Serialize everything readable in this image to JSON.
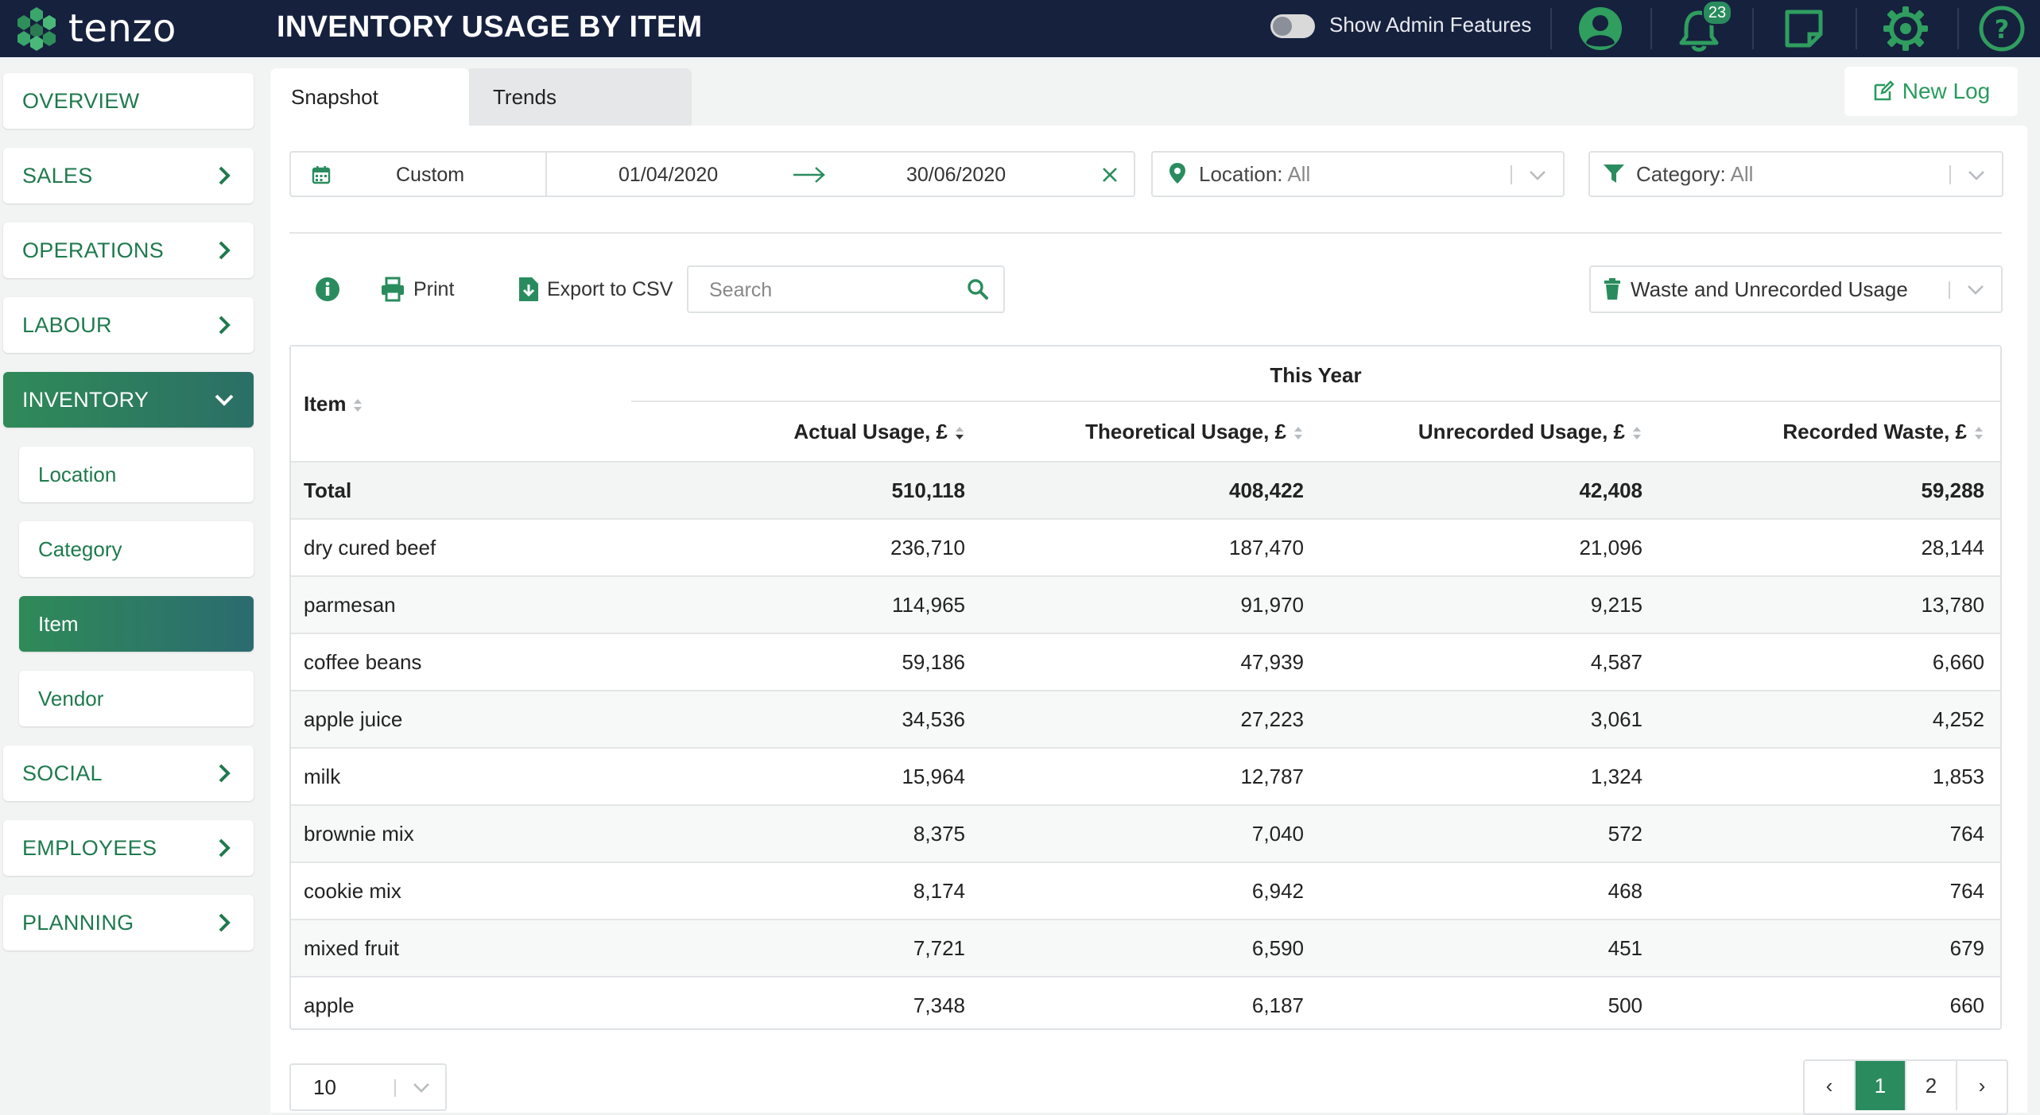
{
  "brand": {
    "name": "tenzo"
  },
  "header": {
    "title": "INVENTORY USAGE BY ITEM",
    "admin_toggle_label": "Show Admin Features",
    "notification_count": "23"
  },
  "sidebar": {
    "items": [
      {
        "label": "OVERVIEW"
      },
      {
        "label": "SALES"
      },
      {
        "label": "OPERATIONS"
      },
      {
        "label": "LABOUR"
      },
      {
        "label": "INVENTORY"
      },
      {
        "label": "SOCIAL"
      },
      {
        "label": "EMPLOYEES"
      },
      {
        "label": "PLANNING"
      }
    ],
    "inventory_sub": [
      {
        "label": "Location"
      },
      {
        "label": "Category"
      },
      {
        "label": "Item"
      },
      {
        "label": "Vendor"
      }
    ]
  },
  "tabs": [
    {
      "label": "Snapshot"
    },
    {
      "label": "Trends"
    }
  ],
  "new_log_label": "New Log",
  "filters": {
    "range_mode": "Custom",
    "start_date": "01/04/2020",
    "end_date": "30/06/2020",
    "location_label": "Location:",
    "location_value": "All",
    "category_label": "Category:",
    "category_value": "All"
  },
  "toolbar": {
    "print_label": "Print",
    "export_label": "Export to CSV",
    "search_placeholder": "Search",
    "view_select": "Waste and Unrecorded Usage"
  },
  "table": {
    "group_header": "This Year",
    "item_header": "Item",
    "columns": [
      "Actual Usage, £",
      "Theoretical Usage, £",
      "Unrecorded Usage, £",
      "Recorded Waste, £"
    ],
    "total": {
      "name": "Total",
      "values": [
        "510,118",
        "408,422",
        "42,408",
        "59,288"
      ]
    },
    "rows": [
      {
        "name": "dry cured beef",
        "values": [
          "236,710",
          "187,470",
          "21,096",
          "28,144"
        ]
      },
      {
        "name": "parmesan",
        "values": [
          "114,965",
          "91,970",
          "9,215",
          "13,780"
        ]
      },
      {
        "name": "coffee beans",
        "values": [
          "59,186",
          "47,939",
          "4,587",
          "6,660"
        ]
      },
      {
        "name": "apple juice",
        "values": [
          "34,536",
          "27,223",
          "3,061",
          "4,252"
        ]
      },
      {
        "name": "milk",
        "values": [
          "15,964",
          "12,787",
          "1,324",
          "1,853"
        ]
      },
      {
        "name": "brownie mix",
        "values": [
          "8,375",
          "7,040",
          "572",
          "764"
        ]
      },
      {
        "name": "cookie mix",
        "values": [
          "8,174",
          "6,942",
          "468",
          "764"
        ]
      },
      {
        "name": "mixed fruit",
        "values": [
          "7,721",
          "6,590",
          "451",
          "679"
        ]
      },
      {
        "name": "apple",
        "values": [
          "7,348",
          "6,187",
          "500",
          "660"
        ]
      }
    ]
  },
  "pagination": {
    "page_size": "10",
    "prev": "‹",
    "pages": [
      "1",
      "2"
    ],
    "next": "›"
  },
  "colors": {
    "navy": "#16213e",
    "green": "#2a8c5e",
    "green_text": "#1f7a4e"
  }
}
